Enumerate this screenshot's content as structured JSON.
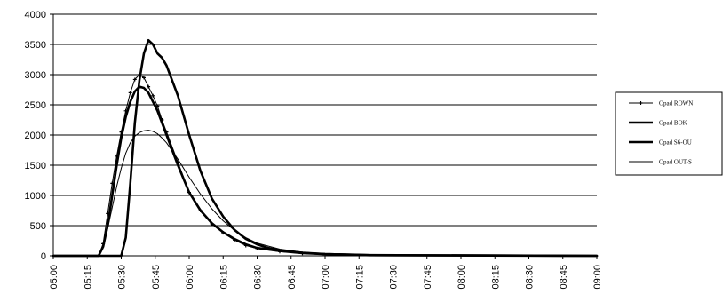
{
  "chart_data": {
    "type": "line",
    "title": "",
    "xlabel": "",
    "ylabel": "",
    "ylim": [
      0,
      4000
    ],
    "yticks": [
      "0",
      "500",
      "1000",
      "1500",
      "2000",
      "2500",
      "3000",
      "3500",
      "4000"
    ],
    "x_ticks": [
      "05:00",
      "05:15",
      "05:30",
      "05:45",
      "06:00",
      "06:15",
      "06:30",
      "06:45",
      "07:00",
      "07:15",
      "07:30",
      "07:45",
      "08:00",
      "08:15",
      "08:30",
      "08:45",
      "09:00"
    ],
    "x_range_minutes": [
      300,
      540
    ],
    "grid": "horizontal",
    "legend_position": "right",
    "series": [
      {
        "name": "Opad ROWN",
        "style": "thin-with-markers",
        "color": "#000000",
        "x": [
          300,
          320,
          322,
          324,
          326,
          328,
          330,
          332,
          334,
          336,
          338,
          340,
          342,
          344,
          346,
          348,
          350,
          355,
          360,
          365,
          370,
          375,
          380,
          385,
          390,
          400,
          410,
          420,
          440,
          540
        ],
        "y": [
          0,
          0,
          200,
          700,
          1200,
          1650,
          2050,
          2400,
          2700,
          2920,
          3000,
          2950,
          2800,
          2650,
          2480,
          2250,
          2050,
          1550,
          1050,
          750,
          530,
          380,
          260,
          170,
          120,
          70,
          40,
          25,
          10,
          0
        ]
      },
      {
        "name": "Opad BOK",
        "style": "thick",
        "color": "#000000",
        "x": [
          300,
          330,
          332,
          334,
          336,
          338,
          340,
          342,
          344,
          346,
          348,
          350,
          355,
          360,
          365,
          370,
          375,
          380,
          385,
          390,
          395,
          400,
          410,
          420,
          440,
          540
        ],
        "y": [
          0,
          0,
          300,
          1200,
          2200,
          2900,
          3350,
          3570,
          3500,
          3350,
          3280,
          3150,
          2650,
          2000,
          1400,
          950,
          650,
          430,
          280,
          190,
          130,
          90,
          50,
          30,
          12,
          0
        ]
      },
      {
        "name": "Opad S6-OU",
        "style": "thick",
        "color": "#000000",
        "x": [
          300,
          320,
          322,
          324,
          326,
          328,
          330,
          332,
          334,
          336,
          338,
          340,
          342,
          344,
          346,
          348,
          350,
          355,
          360,
          365,
          370,
          375,
          380,
          385,
          390,
          400,
          410,
          420,
          440,
          540
        ],
        "y": [
          0,
          0,
          150,
          500,
          1000,
          1500,
          1950,
          2300,
          2550,
          2720,
          2800,
          2780,
          2700,
          2550,
          2400,
          2200,
          2000,
          1500,
          1050,
          750,
          540,
          390,
          280,
          190,
          130,
          80,
          45,
          28,
          10,
          0
        ]
      },
      {
        "name": "Opad OUT-S",
        "style": "thin",
        "color": "#000000",
        "x": [
          300,
          320,
          322,
          324,
          326,
          328,
          330,
          332,
          334,
          336,
          338,
          340,
          342,
          344,
          346,
          348,
          350,
          355,
          360,
          365,
          370,
          375,
          380,
          385,
          390,
          400,
          410,
          420,
          440,
          540
        ],
        "y": [
          0,
          0,
          150,
          450,
          800,
          1150,
          1450,
          1700,
          1870,
          1980,
          2040,
          2070,
          2080,
          2060,
          2020,
          1950,
          1870,
          1600,
          1300,
          1020,
          780,
          580,
          420,
          300,
          210,
          110,
          60,
          35,
          12,
          0
        ]
      }
    ]
  }
}
